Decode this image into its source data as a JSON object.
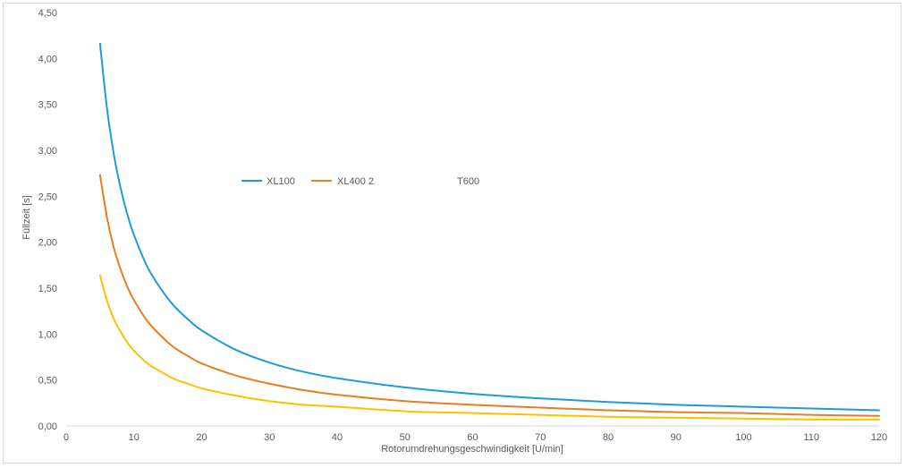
{
  "chart_data": {
    "type": "line",
    "title": "",
    "xlabel": "Rotorumdrehungsgeschwindigkeit  [U/min]",
    "ylabel": "Füllzeit [s]",
    "xlim": [
      0,
      120
    ],
    "ylim": [
      0,
      4.5
    ],
    "x_ticks": [
      "0",
      "10",
      "20",
      "30",
      "40",
      "50",
      "60",
      "70",
      "80",
      "90",
      "100",
      "110",
      "120"
    ],
    "y_ticks": [
      "0,00",
      "0,50",
      "1,00",
      "1,50",
      "2,00",
      "2,50",
      "3,00",
      "3,50",
      "4,00",
      "4,50"
    ],
    "grid": false,
    "legend_position": "center-left",
    "x": [
      5,
      6,
      7,
      8,
      9,
      10,
      12,
      14,
      16,
      18,
      20,
      25,
      30,
      35,
      40,
      50,
      60,
      70,
      80,
      90,
      100,
      110,
      120
    ],
    "series": [
      {
        "name": "XL100",
        "color": "#1f9bd7",
        "values": [
          4.16,
          3.47,
          2.97,
          2.6,
          2.31,
          2.08,
          1.73,
          1.49,
          1.3,
          1.16,
          1.04,
          0.83,
          0.69,
          0.59,
          0.52,
          0.42,
          0.35,
          0.3,
          0.26,
          0.23,
          0.21,
          0.19,
          0.17
        ]
      },
      {
        "name": "XL400 2",
        "color": "#e67e22",
        "values": [
          2.73,
          2.28,
          1.95,
          1.71,
          1.52,
          1.37,
          1.14,
          0.98,
          0.85,
          0.76,
          0.68,
          0.55,
          0.46,
          0.39,
          0.34,
          0.27,
          0.23,
          0.2,
          0.17,
          0.15,
          0.14,
          0.12,
          0.11
        ]
      },
      {
        "name": "T600",
        "color": "#ffc000",
        "values": [
          1.64,
          1.37,
          1.17,
          1.03,
          0.91,
          0.82,
          0.68,
          0.59,
          0.51,
          0.46,
          0.41,
          0.33,
          0.27,
          0.23,
          0.21,
          0.16,
          0.14,
          0.12,
          0.1,
          0.09,
          0.08,
          0.07,
          0.07
        ]
      }
    ]
  }
}
